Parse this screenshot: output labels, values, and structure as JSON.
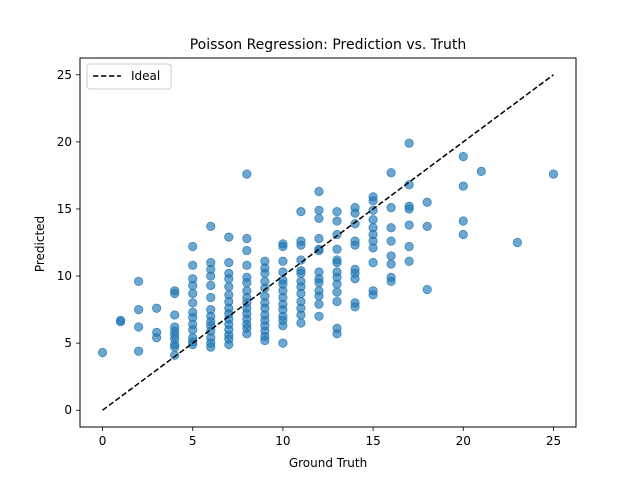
{
  "chart_data": {
    "type": "scatter",
    "title": "Poisson Regression: Prediction vs. Truth",
    "xlabel": "Ground Truth",
    "ylabel": "Predicted",
    "xlim": [
      -1.25,
      26.25
    ],
    "ylim": [
      -1.25,
      26.25
    ],
    "xticks": [
      0,
      5,
      10,
      15,
      20,
      25
    ],
    "yticks": [
      0,
      5,
      10,
      15,
      20,
      25
    ],
    "grid": false,
    "legend_position": "top-left",
    "ideal_line": {
      "name": "Ideal",
      "x": [
        0,
        25
      ],
      "y": [
        0,
        25
      ],
      "color": "#000000",
      "style": "dashed"
    },
    "series": [
      {
        "color": "#1f77b4",
        "alpha": 0.65,
        "points": [
          [
            0,
            4.3
          ],
          [
            1,
            6.7
          ],
          [
            1,
            6.6
          ],
          [
            2,
            9.6
          ],
          [
            2,
            7.5
          ],
          [
            2,
            6.2
          ],
          [
            2,
            4.4
          ],
          [
            3,
            7.6
          ],
          [
            3,
            5.8
          ],
          [
            3,
            5.4
          ],
          [
            4,
            8.9
          ],
          [
            4,
            8.7
          ],
          [
            4,
            7.1
          ],
          [
            4,
            6.2
          ],
          [
            4,
            5.9
          ],
          [
            4,
            5.6
          ],
          [
            4,
            5.3
          ],
          [
            4,
            4.9
          ],
          [
            4,
            4.7
          ],
          [
            4,
            4.1
          ],
          [
            5,
            12.2
          ],
          [
            5,
            10.8
          ],
          [
            5,
            9.8
          ],
          [
            5,
            9.3
          ],
          [
            5,
            8.7
          ],
          [
            5,
            8.0
          ],
          [
            5,
            7.3
          ],
          [
            5,
            6.9
          ],
          [
            5,
            6.4
          ],
          [
            5,
            6.0
          ],
          [
            5,
            5.4
          ],
          [
            5,
            5.1
          ],
          [
            5,
            4.9
          ],
          [
            6,
            13.7
          ],
          [
            6,
            11.0
          ],
          [
            6,
            10.5
          ],
          [
            6,
            10.0
          ],
          [
            6,
            9.3
          ],
          [
            6,
            8.4
          ],
          [
            6,
            7.5
          ],
          [
            6,
            7.0
          ],
          [
            6,
            6.6
          ],
          [
            6,
            6.3
          ],
          [
            6,
            5.9
          ],
          [
            6,
            5.4
          ],
          [
            6,
            5.0
          ],
          [
            6,
            4.7
          ],
          [
            7,
            12.9
          ],
          [
            7,
            11.0
          ],
          [
            7,
            10.2
          ],
          [
            7,
            9.8
          ],
          [
            7,
            9.2
          ],
          [
            7,
            8.6
          ],
          [
            7,
            8.1
          ],
          [
            7,
            7.6
          ],
          [
            7,
            7.2
          ],
          [
            7,
            6.8
          ],
          [
            7,
            6.4
          ],
          [
            7,
            6.0
          ],
          [
            7,
            5.6
          ],
          [
            7,
            5.3
          ],
          [
            7,
            4.9
          ],
          [
            8,
            17.6
          ],
          [
            8,
            12.8
          ],
          [
            8,
            11.9
          ],
          [
            8,
            10.8
          ],
          [
            8,
            9.9
          ],
          [
            8,
            9.5
          ],
          [
            8,
            8.9
          ],
          [
            8,
            8.4
          ],
          [
            8,
            8.0
          ],
          [
            8,
            7.6
          ],
          [
            8,
            7.2
          ],
          [
            8,
            6.8
          ],
          [
            8,
            6.4
          ],
          [
            8,
            6.1
          ],
          [
            8,
            5.7
          ],
          [
            9,
            11.1
          ],
          [
            9,
            10.6
          ],
          [
            9,
            10.2
          ],
          [
            9,
            9.6
          ],
          [
            9,
            9.1
          ],
          [
            9,
            8.5
          ],
          [
            9,
            8.0
          ],
          [
            9,
            7.6
          ],
          [
            9,
            7.1
          ],
          [
            9,
            6.7
          ],
          [
            9,
            6.3
          ],
          [
            9,
            5.9
          ],
          [
            9,
            5.5
          ],
          [
            9,
            5.2
          ],
          [
            10,
            12.4
          ],
          [
            10,
            12.2
          ],
          [
            10,
            11.1
          ],
          [
            10,
            10.3
          ],
          [
            10,
            9.7
          ],
          [
            10,
            9.4
          ],
          [
            10,
            8.9
          ],
          [
            10,
            8.4
          ],
          [
            10,
            7.9
          ],
          [
            10,
            7.5
          ],
          [
            10,
            7.0
          ],
          [
            10,
            6.7
          ],
          [
            10,
            6.3
          ],
          [
            10,
            5.0
          ],
          [
            11,
            14.8
          ],
          [
            11,
            12.6
          ],
          [
            11,
            12.3
          ],
          [
            11,
            11.2
          ],
          [
            11,
            10.4
          ],
          [
            11,
            10.2
          ],
          [
            11,
            9.6
          ],
          [
            11,
            9.2
          ],
          [
            11,
            8.7
          ],
          [
            11,
            8.1
          ],
          [
            11,
            7.6
          ],
          [
            11,
            7.1
          ],
          [
            11,
            6.5
          ],
          [
            12,
            16.3
          ],
          [
            12,
            14.9
          ],
          [
            12,
            14.3
          ],
          [
            12,
            12.8
          ],
          [
            12,
            12.0
          ],
          [
            12,
            11.9
          ],
          [
            12,
            10.3
          ],
          [
            12,
            9.8
          ],
          [
            12,
            9.5
          ],
          [
            12,
            8.9
          ],
          [
            12,
            8.5
          ],
          [
            12,
            7.9
          ],
          [
            12,
            7.0
          ],
          [
            13,
            14.8
          ],
          [
            13,
            14.1
          ],
          [
            13,
            13.1
          ],
          [
            13,
            12.0
          ],
          [
            13,
            11.2
          ],
          [
            13,
            11.0
          ],
          [
            13,
            10.3
          ],
          [
            13,
            9.9
          ],
          [
            13,
            9.4
          ],
          [
            13,
            8.8
          ],
          [
            13,
            8.1
          ],
          [
            13,
            6.1
          ],
          [
            13,
            5.7
          ],
          [
            14,
            15.1
          ],
          [
            14,
            14.7
          ],
          [
            14,
            13.9
          ],
          [
            14,
            12.6
          ],
          [
            14,
            12.3
          ],
          [
            14,
            10.5
          ],
          [
            14,
            10.2
          ],
          [
            14,
            9.8
          ],
          [
            14,
            8.0
          ],
          [
            14,
            7.7
          ],
          [
            15,
            15.9
          ],
          [
            15,
            15.6
          ],
          [
            15,
            14.9
          ],
          [
            15,
            14.2
          ],
          [
            15,
            13.6
          ],
          [
            15,
            13.1
          ],
          [
            15,
            12.6
          ],
          [
            15,
            12.1
          ],
          [
            15,
            11.0
          ],
          [
            15,
            8.9
          ],
          [
            15,
            8.6
          ],
          [
            16,
            17.7
          ],
          [
            16,
            15.1
          ],
          [
            16,
            13.6
          ],
          [
            16,
            12.6
          ],
          [
            16,
            11.5
          ],
          [
            16,
            10.9
          ],
          [
            16,
            9.9
          ],
          [
            16,
            9.6
          ],
          [
            17,
            19.9
          ],
          [
            17,
            16.8
          ],
          [
            17,
            15.2
          ],
          [
            17,
            15.0
          ],
          [
            17,
            13.8
          ],
          [
            17,
            12.2
          ],
          [
            17,
            11.1
          ],
          [
            18,
            15.5
          ],
          [
            18,
            13.7
          ],
          [
            18,
            9.0
          ],
          [
            20,
            18.9
          ],
          [
            20,
            16.7
          ],
          [
            20,
            14.1
          ],
          [
            20,
            13.1
          ],
          [
            21,
            17.8
          ],
          [
            23,
            12.5
          ],
          [
            25,
            17.6
          ]
        ]
      }
    ]
  }
}
